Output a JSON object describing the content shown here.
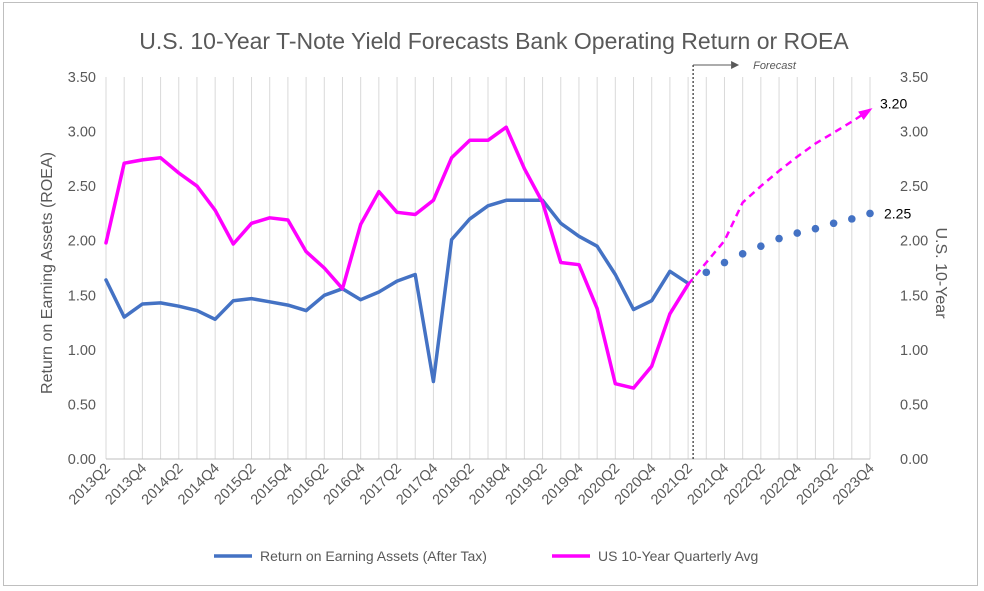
{
  "chart_data": {
    "type": "line",
    "title": "U.S. 10-Year T-Note Yield Forecasts Bank Operating Return or ROEA",
    "ylabel_left": "Return on Earning Assets (ROEA)",
    "ylabel_right": "U.S. 10-Year",
    "ylim": [
      0,
      3.5
    ],
    "yticks": [
      "0.00",
      "0.50",
      "1.00",
      "1.50",
      "2.00",
      "2.50",
      "3.00",
      "3.50"
    ],
    "categories": [
      "2013Q2",
      "2013Q3",
      "2013Q4",
      "2014Q1",
      "2014Q2",
      "2014Q3",
      "2014Q4",
      "2015Q1",
      "2015Q2",
      "2015Q3",
      "2015Q4",
      "2016Q1",
      "2016Q2",
      "2016Q3",
      "2016Q4",
      "2017Q1",
      "2017Q2",
      "2017Q3",
      "2017Q4",
      "2018Q1",
      "2018Q2",
      "2018Q3",
      "2018Q4",
      "2019Q1",
      "2019Q2",
      "2019Q3",
      "2019Q4",
      "2020Q1",
      "2020Q2",
      "2020Q3",
      "2020Q4",
      "2021Q1",
      "2021Q2",
      "2021Q3",
      "2021Q4",
      "2022Q1",
      "2022Q2",
      "2022Q3",
      "2022Q4",
      "2023Q1",
      "2023Q2",
      "2023Q3",
      "2023Q4"
    ],
    "xtick_labels": [
      "2013Q2",
      "2013Q4",
      "2014Q2",
      "2014Q4",
      "2015Q2",
      "2015Q4",
      "2016Q2",
      "2016Q4",
      "2017Q2",
      "2017Q4",
      "2018Q2",
      "2018Q4",
      "2019Q2",
      "2019Q4",
      "2020Q2",
      "2020Q4",
      "2021Q2",
      "2021Q4",
      "2022Q2",
      "2022Q4",
      "2023Q2",
      "2023Q4"
    ],
    "series": [
      {
        "name": "Return on Earning Assets (After Tax)",
        "color": "#4472c4",
        "values": [
          1.64,
          1.3,
          1.42,
          1.43,
          1.4,
          1.36,
          1.28,
          1.45,
          1.47,
          1.44,
          1.41,
          1.36,
          1.5,
          1.56,
          1.46,
          1.53,
          1.63,
          1.69,
          0.71,
          2.01,
          2.2,
          2.32,
          2.37,
          2.37,
          2.37,
          2.16,
          2.04,
          1.95,
          1.69,
          1.37,
          1.45,
          1.72,
          1.61,
          null,
          null,
          null,
          null,
          null,
          null,
          null,
          null,
          null,
          null
        ],
        "forecast": [
          null,
          null,
          null,
          null,
          null,
          null,
          null,
          null,
          null,
          null,
          null,
          null,
          null,
          null,
          null,
          null,
          null,
          null,
          null,
          null,
          null,
          null,
          null,
          null,
          null,
          null,
          null,
          null,
          null,
          null,
          null,
          null,
          null,
          1.71,
          1.8,
          1.88,
          1.95,
          2.02,
          2.07,
          2.11,
          2.16,
          2.2,
          2.25
        ]
      },
      {
        "name": "US 10-Year Quarterly Avg",
        "color": "#ff00ff",
        "values": [
          1.98,
          2.71,
          2.74,
          2.76,
          2.62,
          2.5,
          2.28,
          1.97,
          2.16,
          2.21,
          2.19,
          1.9,
          1.75,
          1.56,
          2.15,
          2.45,
          2.26,
          2.24,
          2.37,
          2.76,
          2.92,
          2.92,
          3.04,
          2.66,
          2.35,
          1.8,
          1.78,
          1.38,
          0.69,
          0.65,
          0.85,
          1.33,
          1.6,
          null,
          null,
          null,
          null,
          null,
          null,
          null,
          null,
          null,
          null
        ],
        "forecast": [
          null,
          null,
          null,
          null,
          null,
          null,
          null,
          null,
          null,
          null,
          null,
          null,
          null,
          null,
          null,
          null,
          null,
          null,
          null,
          null,
          null,
          null,
          null,
          null,
          null,
          null,
          null,
          null,
          null,
          null,
          null,
          null,
          1.6,
          1.8,
          2.0,
          2.35,
          2.5,
          2.64,
          2.77,
          2.89,
          2.99,
          3.09,
          3.2
        ]
      }
    ],
    "annotations": {
      "forecast_label": "Forecast",
      "end_label_10y": "3.20",
      "end_label_roea": "2.25"
    },
    "legend_position": "bottom",
    "grid": "vertical"
  }
}
